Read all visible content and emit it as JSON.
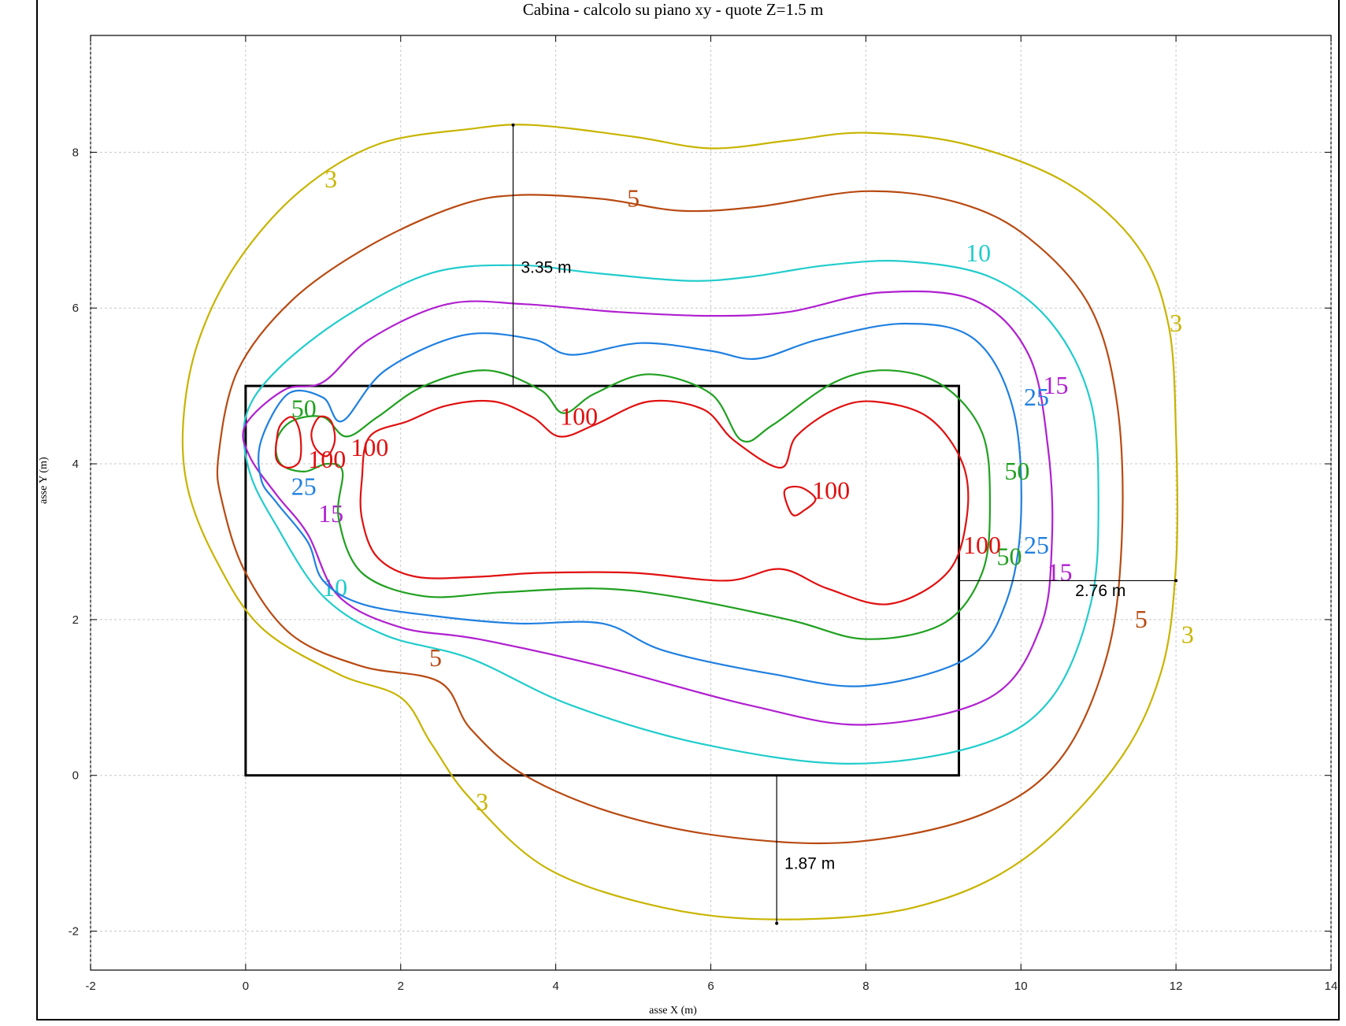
{
  "chart_data": {
    "type": "contour",
    "title": "Cabina  -  calcolo su piano xy  -  quote Z=1.5 m",
    "xlabel": "asse X (m)",
    "ylabel": "asse Y (m)",
    "xlim": [
      -2,
      14
    ],
    "ylim": [
      -2.5,
      9.5
    ],
    "xticks": [
      -2,
      0,
      2,
      4,
      6,
      8,
      10,
      12,
      14
    ],
    "yticks": [
      -2,
      0,
      2,
      4,
      6,
      8
    ],
    "grid": true,
    "cabin_rectangle": {
      "x": [
        0,
        9.2
      ],
      "y": [
        0,
        5
      ]
    },
    "series": [
      {
        "level": "3",
        "color": "#c8b400",
        "points": [
          [
            -0.8,
            4.6
          ],
          [
            -0.6,
            5.6
          ],
          [
            -0.1,
            6.6
          ],
          [
            0.7,
            7.5
          ],
          [
            1.7,
            8.1
          ],
          [
            2.9,
            8.3
          ],
          [
            3.7,
            8.35
          ],
          [
            5.0,
            8.2
          ],
          [
            6.0,
            8.05
          ],
          [
            7.0,
            8.15
          ],
          [
            8.0,
            8.25
          ],
          [
            9.3,
            8.1
          ],
          [
            10.6,
            7.6
          ],
          [
            11.5,
            6.8
          ],
          [
            11.9,
            5.8
          ],
          [
            12.0,
            4.4
          ],
          [
            12.0,
            2.7
          ],
          [
            11.8,
            1.3
          ],
          [
            11.2,
            0.1
          ],
          [
            10.0,
            -1.1
          ],
          [
            8.6,
            -1.7
          ],
          [
            6.9,
            -1.85
          ],
          [
            5.4,
            -1.7
          ],
          [
            3.9,
            -1.2
          ],
          [
            2.9,
            -0.3
          ],
          [
            2.4,
            0.4
          ],
          [
            2.0,
            1.0
          ],
          [
            1.2,
            1.3
          ],
          [
            0.2,
            1.9
          ],
          [
            -0.4,
            2.8
          ],
          [
            -0.75,
            3.7
          ],
          [
            -0.8,
            4.6
          ]
        ],
        "labels": [
          {
            "text": "3",
            "x": 1.1,
            "y": 7.55
          },
          {
            "text": "3",
            "x": 12.0,
            "y": 5.7
          },
          {
            "text": "3",
            "x": 12.15,
            "y": 1.7
          },
          {
            "text": "3",
            "x": 3.05,
            "y": -0.45
          }
        ]
      },
      {
        "level": "5",
        "color": "#b84a12",
        "points": [
          [
            -0.35,
            4.1
          ],
          [
            -0.1,
            5.2
          ],
          [
            0.6,
            6.1
          ],
          [
            1.6,
            6.8
          ],
          [
            2.7,
            7.3
          ],
          [
            3.5,
            7.45
          ],
          [
            4.6,
            7.4
          ],
          [
            5.6,
            7.25
          ],
          [
            6.6,
            7.3
          ],
          [
            8.0,
            7.5
          ],
          [
            9.2,
            7.35
          ],
          [
            10.1,
            6.9
          ],
          [
            10.9,
            6.0
          ],
          [
            11.25,
            4.7
          ],
          [
            11.3,
            3.0
          ],
          [
            11.1,
            1.5
          ],
          [
            10.5,
            0.2
          ],
          [
            9.5,
            -0.5
          ],
          [
            7.9,
            -0.85
          ],
          [
            6.3,
            -0.8
          ],
          [
            4.8,
            -0.5
          ],
          [
            3.6,
            0.0
          ],
          [
            2.9,
            0.6
          ],
          [
            2.5,
            1.2
          ],
          [
            1.5,
            1.4
          ],
          [
            0.6,
            1.8
          ],
          [
            0.0,
            2.6
          ],
          [
            -0.3,
            3.5
          ],
          [
            -0.35,
            4.1
          ]
        ],
        "labels": [
          {
            "text": "5",
            "x": 5.0,
            "y": 7.3
          },
          {
            "text": "5",
            "x": 2.45,
            "y": 1.4
          },
          {
            "text": "5",
            "x": 11.55,
            "y": 1.9
          }
        ]
      },
      {
        "level": "10",
        "color": "#22cccc",
        "points": [
          [
            0.0,
            4.6
          ],
          [
            0.4,
            5.2
          ],
          [
            1.3,
            5.9
          ],
          [
            2.4,
            6.45
          ],
          [
            3.5,
            6.55
          ],
          [
            4.5,
            6.45
          ],
          [
            5.7,
            6.35
          ],
          [
            6.5,
            6.4
          ],
          [
            7.5,
            6.55
          ],
          [
            8.5,
            6.6
          ],
          [
            9.6,
            6.4
          ],
          [
            10.4,
            5.8
          ],
          [
            10.9,
            4.8
          ],
          [
            11.0,
            3.5
          ],
          [
            10.9,
            2.2
          ],
          [
            10.4,
            1.0
          ],
          [
            9.5,
            0.4
          ],
          [
            7.8,
            0.15
          ],
          [
            5.9,
            0.4
          ],
          [
            4.2,
            0.9
          ],
          [
            2.9,
            1.5
          ],
          [
            1.8,
            1.8
          ],
          [
            1.0,
            2.3
          ],
          [
            0.4,
            3.2
          ],
          [
            0.05,
            3.9
          ],
          [
            0.0,
            4.6
          ]
        ],
        "labels": [
          {
            "text": "10",
            "x": 9.45,
            "y": 6.6
          },
          {
            "text": "10",
            "x": 1.15,
            "y": 2.3
          }
        ]
      },
      {
        "level": "15",
        "color": "#b020d0",
        "points": [
          [
            0.0,
            4.5
          ],
          [
            0.5,
            4.95
          ],
          [
            1.0,
            5.05
          ],
          [
            1.6,
            5.6
          ],
          [
            2.6,
            6.05
          ],
          [
            3.6,
            6.05
          ],
          [
            4.8,
            5.95
          ],
          [
            6.0,
            5.9
          ],
          [
            7.0,
            5.95
          ],
          [
            8.2,
            6.2
          ],
          [
            9.4,
            6.1
          ],
          [
            10.1,
            5.4
          ],
          [
            10.35,
            4.2
          ],
          [
            10.4,
            3.0
          ],
          [
            10.25,
            1.9
          ],
          [
            9.6,
            1.0
          ],
          [
            8.0,
            0.65
          ],
          [
            6.5,
            0.9
          ],
          [
            4.6,
            1.4
          ],
          [
            3.0,
            1.75
          ],
          [
            2.0,
            1.9
          ],
          [
            1.2,
            2.3
          ],
          [
            0.8,
            3.1
          ],
          [
            0.4,
            3.6
          ],
          [
            0.05,
            4.1
          ],
          [
            0.0,
            4.5
          ]
        ],
        "labels": [
          {
            "text": "15",
            "x": 10.45,
            "y": 4.9
          },
          {
            "text": "15",
            "x": 1.1,
            "y": 3.25
          },
          {
            "text": "15",
            "x": 10.5,
            "y": 2.5
          }
        ]
      },
      {
        "level": "25",
        "color": "#2080e0",
        "points": [
          [
            0.2,
            4.3
          ],
          [
            0.55,
            4.9
          ],
          [
            1.0,
            4.85
          ],
          [
            1.25,
            4.55
          ],
          [
            1.8,
            5.2
          ],
          [
            2.8,
            5.65
          ],
          [
            3.7,
            5.6
          ],
          [
            4.2,
            5.4
          ],
          [
            5.1,
            5.55
          ],
          [
            6.0,
            5.45
          ],
          [
            6.6,
            5.35
          ],
          [
            7.4,
            5.6
          ],
          [
            8.5,
            5.8
          ],
          [
            9.4,
            5.6
          ],
          [
            9.9,
            4.7
          ],
          [
            10.0,
            3.3
          ],
          [
            9.8,
            2.2
          ],
          [
            9.3,
            1.5
          ],
          [
            8.0,
            1.15
          ],
          [
            6.8,
            1.3
          ],
          [
            5.4,
            1.6
          ],
          [
            4.6,
            1.95
          ],
          [
            3.5,
            1.95
          ],
          [
            2.4,
            2.05
          ],
          [
            1.5,
            2.2
          ],
          [
            1.0,
            2.5
          ],
          [
            0.8,
            3.0
          ],
          [
            0.4,
            3.5
          ],
          [
            0.2,
            3.8
          ],
          [
            0.2,
            4.3
          ]
        ],
        "labels": [
          {
            "text": "25",
            "x": 0.75,
            "y": 3.6
          },
          {
            "text": "25",
            "x": 10.2,
            "y": 4.75
          },
          {
            "text": "25",
            "x": 10.2,
            "y": 2.85
          }
        ]
      },
      {
        "level": "50",
        "color": "#20a020",
        "points": [
          [
            0.4,
            4.3
          ],
          [
            0.6,
            4.55
          ],
          [
            1.0,
            4.6
          ],
          [
            1.3,
            4.35
          ],
          [
            1.7,
            4.6
          ],
          [
            2.3,
            5.0
          ],
          [
            3.1,
            5.2
          ],
          [
            3.8,
            4.95
          ],
          [
            4.1,
            4.65
          ],
          [
            4.5,
            4.9
          ],
          [
            5.2,
            5.15
          ],
          [
            6.0,
            4.9
          ],
          [
            6.4,
            4.3
          ],
          [
            6.8,
            4.5
          ],
          [
            7.6,
            5.05
          ],
          [
            8.3,
            5.2
          ],
          [
            9.0,
            5.0
          ],
          [
            9.5,
            4.4
          ],
          [
            9.6,
            3.5
          ],
          [
            9.5,
            2.6
          ],
          [
            9.0,
            1.95
          ],
          [
            8.0,
            1.75
          ],
          [
            7.0,
            2.0
          ],
          [
            5.5,
            2.3
          ],
          [
            4.5,
            2.4
          ],
          [
            3.3,
            2.35
          ],
          [
            2.3,
            2.3
          ],
          [
            1.5,
            2.6
          ],
          [
            1.2,
            3.3
          ],
          [
            1.25,
            3.9
          ],
          [
            1.05,
            4.0
          ],
          [
            0.75,
            3.9
          ],
          [
            0.45,
            4.0
          ],
          [
            0.4,
            4.3
          ]
        ],
        "labels": [
          {
            "text": "50",
            "x": 0.75,
            "y": 4.6
          },
          {
            "text": "50",
            "x": 9.95,
            "y": 3.8
          },
          {
            "text": "50",
            "x": 9.85,
            "y": 2.7
          }
        ]
      },
      {
        "level": "100",
        "color": "#e01010",
        "points": [
          [
            1.6,
            4.35
          ],
          [
            2.1,
            4.55
          ],
          [
            2.6,
            4.75
          ],
          [
            3.2,
            4.8
          ],
          [
            3.7,
            4.6
          ],
          [
            4.05,
            4.35
          ],
          [
            4.5,
            4.5
          ],
          [
            5.2,
            4.8
          ],
          [
            5.9,
            4.7
          ],
          [
            6.3,
            4.3
          ],
          [
            6.9,
            3.95
          ],
          [
            7.1,
            4.35
          ],
          [
            7.6,
            4.7
          ],
          [
            8.1,
            4.8
          ],
          [
            8.8,
            4.6
          ],
          [
            9.25,
            4.0
          ],
          [
            9.3,
            3.3
          ],
          [
            9.05,
            2.6
          ],
          [
            8.3,
            2.2
          ],
          [
            7.5,
            2.4
          ],
          [
            6.9,
            2.65
          ],
          [
            6.2,
            2.5
          ],
          [
            5.0,
            2.6
          ],
          [
            3.8,
            2.6
          ],
          [
            3.0,
            2.55
          ],
          [
            2.2,
            2.55
          ],
          [
            1.7,
            2.8
          ],
          [
            1.5,
            3.3
          ],
          [
            1.5,
            3.8
          ],
          [
            1.6,
            4.35
          ]
        ],
        "extra_paths": [
          [
            [
              0.45,
              4.5
            ],
            [
              0.6,
              4.6
            ],
            [
              0.7,
              4.4
            ],
            [
              0.7,
              4.05
            ],
            [
              0.55,
              3.95
            ],
            [
              0.4,
              4.05
            ],
            [
              0.4,
              4.3
            ],
            [
              0.45,
              4.5
            ]
          ],
          [
            [
              0.95,
              4.6
            ],
            [
              1.1,
              4.55
            ],
            [
              1.15,
              4.3
            ],
            [
              1.05,
              4.1
            ],
            [
              0.9,
              4.2
            ],
            [
              0.85,
              4.4
            ],
            [
              0.95,
              4.6
            ]
          ],
          [
            [
              6.95,
              3.65
            ],
            [
              7.15,
              3.7
            ],
            [
              7.35,
              3.55
            ],
            [
              7.2,
              3.4
            ],
            [
              7.05,
              3.35
            ],
            [
              6.95,
              3.65
            ]
          ]
        ],
        "labels": [
          {
            "text": "100",
            "x": 4.3,
            "y": 4.5
          },
          {
            "text": "100",
            "x": 1.6,
            "y": 4.1
          },
          {
            "text": "100",
            "x": 1.05,
            "y": 3.95
          },
          {
            "text": "100",
            "x": 7.55,
            "y": 3.55
          },
          {
            "text": "100",
            "x": 9.5,
            "y": 2.85
          }
        ]
      }
    ],
    "dimensions": [
      {
        "text": "3.35 m",
        "x1": 3.45,
        "y1": 5.0,
        "x2": 3.45,
        "y2": 8.35,
        "lx": 3.55,
        "ly": 6.45
      },
      {
        "text": "2.76 m",
        "x1": 9.2,
        "y1": 2.5,
        "x2": 12.0,
        "y2": 2.5,
        "lx": 10.7,
        "ly": 2.3
      },
      {
        "text": "1.87 m",
        "x1": 6.85,
        "y1": 0.0,
        "x2": 6.85,
        "y2": -1.9,
        "lx": 6.95,
        "ly": -1.2
      }
    ]
  }
}
